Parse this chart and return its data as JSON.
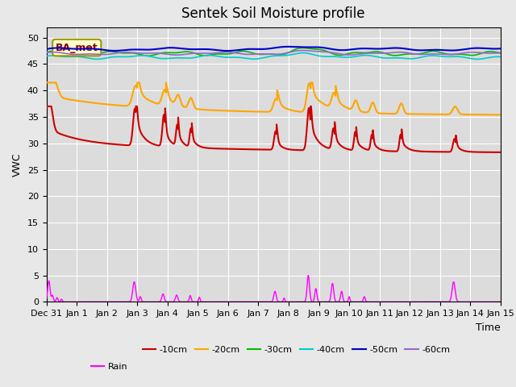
{
  "title": "Sentek Soil Moisture profile",
  "xlabel": "Time",
  "ylabel": "VWC",
  "legend_label": "BA_met",
  "ylim": [
    0,
    52
  ],
  "yticks": [
    0,
    5,
    10,
    15,
    20,
    25,
    30,
    35,
    40,
    45,
    50
  ],
  "x_tick_labels": [
    "Dec 31",
    "Jan 1",
    "Jan 2",
    "Jan 3",
    "Jan 4",
    "Jan 5",
    "Jan 6",
    "Jan 7",
    "Jan 8",
    "Jan 9",
    "Jan 10",
    "Jan 11",
    "Jan 12",
    "Jan 13",
    "Jan 14",
    "Jan 15"
  ],
  "colors": {
    "10cm": "#cc0000",
    "20cm": "#ffa500",
    "30cm": "#00bb00",
    "40cm": "#00cccc",
    "50cm": "#0000cc",
    "60cm": "#9966cc",
    "rain": "#ff00ff"
  },
  "fig_bg": "#e8e8e8",
  "ax_bg": "#dcdcdc",
  "grid_color": "#ffffff",
  "title_fontsize": 12,
  "axis_label_fontsize": 9,
  "tick_fontsize": 8,
  "ba_met_facecolor": "#ffffcc",
  "ba_met_edgecolor": "#999900",
  "ba_met_textcolor": "#8b0000"
}
